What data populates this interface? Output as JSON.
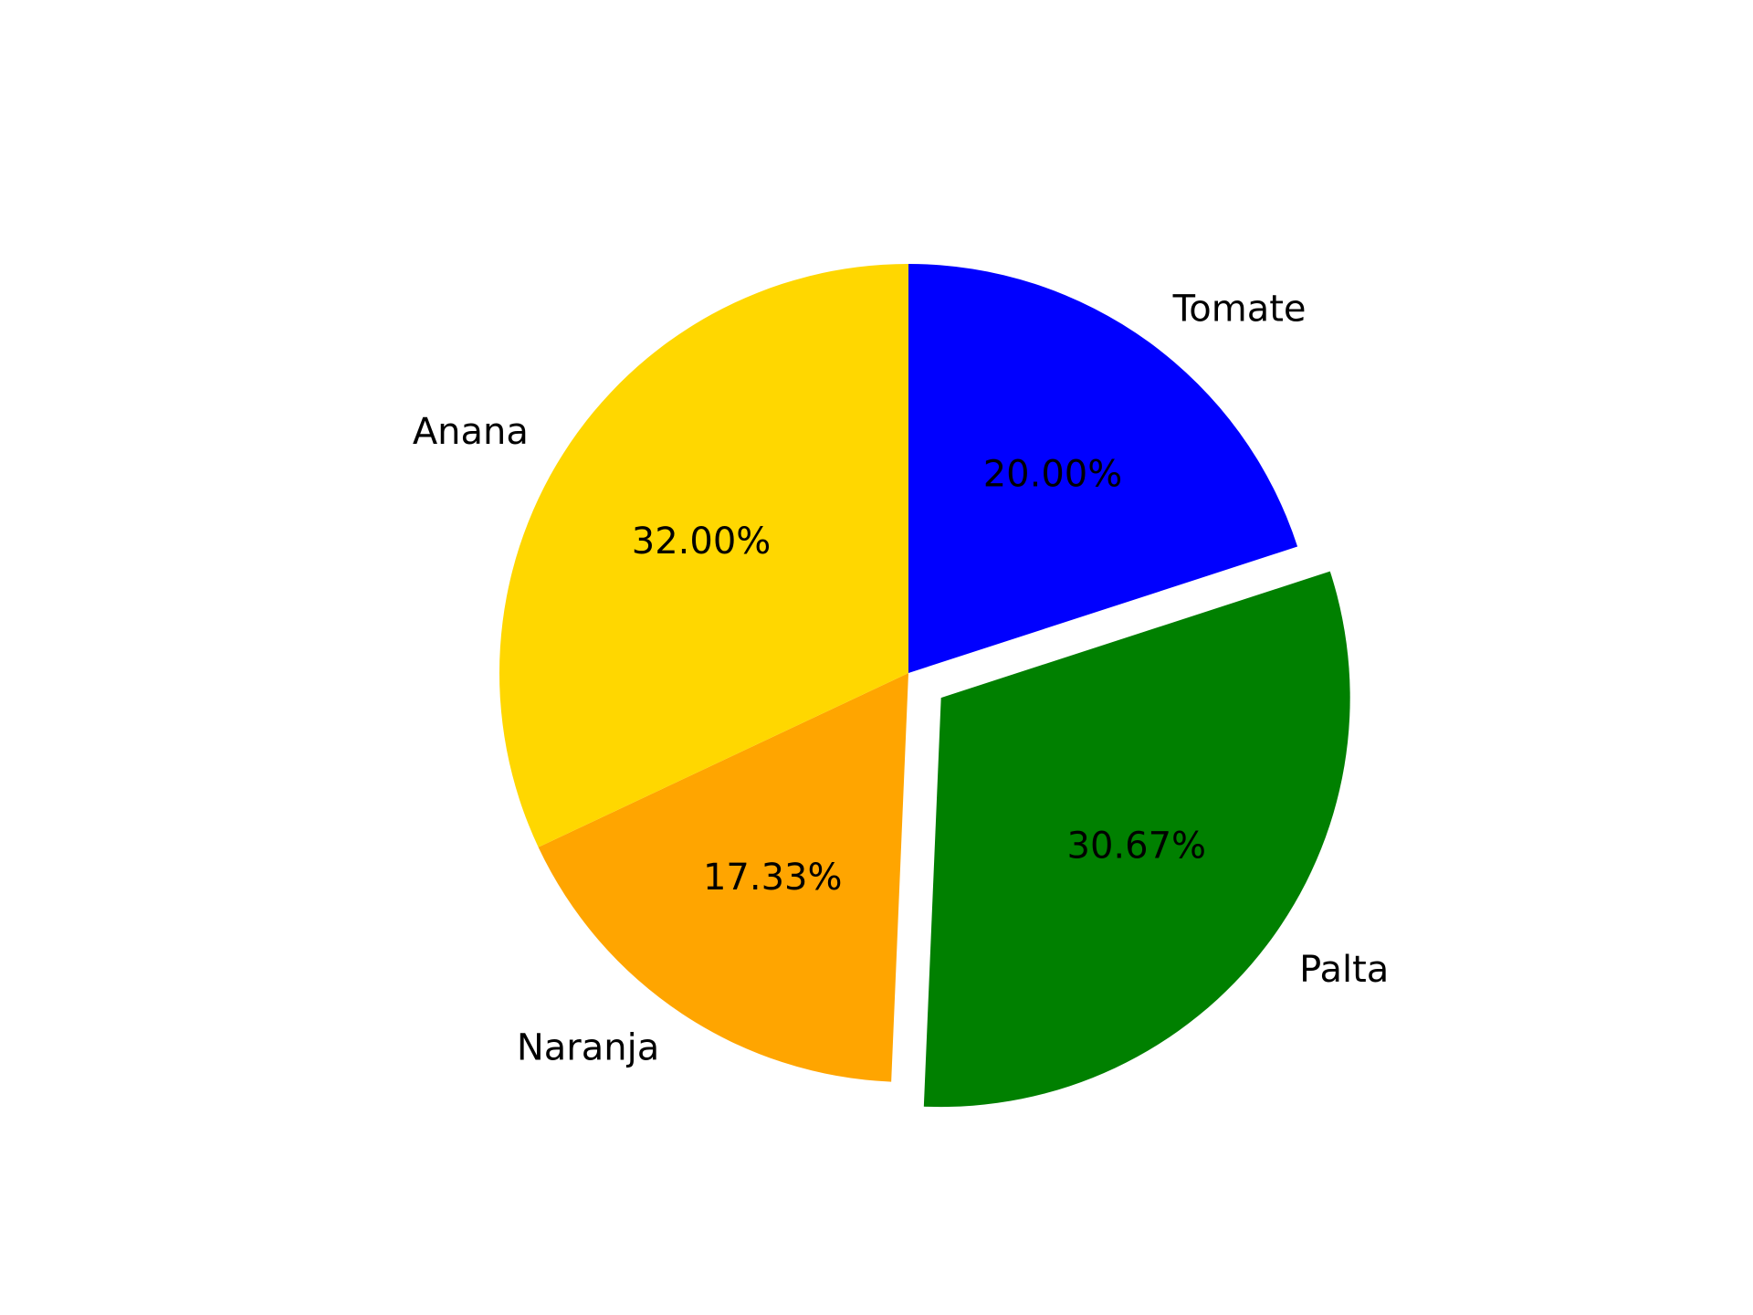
{
  "chart_data": {
    "type": "pie",
    "title": "",
    "start_angle_deg": 90,
    "direction": "clockwise",
    "slices": [
      {
        "label": "Tomate",
        "value": 20.0,
        "pct_text": "20.00%",
        "color": "#0000FF",
        "explode": 0
      },
      {
        "label": "Palta",
        "value": 30.67,
        "pct_text": "30.67%",
        "color": "#008000",
        "explode": 0.1
      },
      {
        "label": "Naranja",
        "value": 17.33,
        "pct_text": "17.33%",
        "color": "#FFA500",
        "explode": 0
      },
      {
        "label": "Anana",
        "value": 32.0,
        "pct_text": "32.00%",
        "color": "#FFD700",
        "explode": 0
      }
    ]
  }
}
